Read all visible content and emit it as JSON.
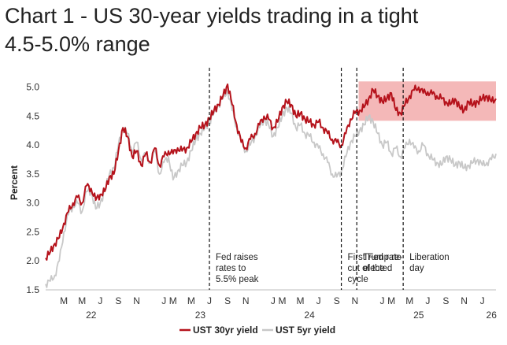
{
  "title_line1": "Chart 1 - US 30-year yields trading in a tight",
  "title_line2": "4.5-5.0% range",
  "chart_data": {
    "type": "line",
    "title": "Chart 1 - US 30-year yields trading in a tight 4.5-5.0% range",
    "ylabel": "Percent",
    "ylim": [
      1.5,
      5.2
    ],
    "yticks": [
      1.5,
      2.0,
      2.5,
      3.0,
      3.5,
      4.0,
      4.5,
      5.0
    ],
    "ytick_labels": [
      "1.5",
      "2.0",
      "2.5",
      "3.0",
      "3.5",
      "4.0",
      "4.5",
      "5.0"
    ],
    "x_range_months": [
      0,
      49.5
    ],
    "x_origin": "2022-01",
    "month_ticks": [
      {
        "m": 2,
        "label": "M"
      },
      {
        "m": 4,
        "label": "M"
      },
      {
        "m": 6,
        "label": "J"
      },
      {
        "m": 8,
        "label": "S"
      },
      {
        "m": 10,
        "label": "N"
      },
      {
        "m": 13,
        "label": "J"
      },
      {
        "m": 14,
        "label": "M"
      },
      {
        "m": 16,
        "label": "M"
      },
      {
        "m": 18,
        "label": "J"
      },
      {
        "m": 20,
        "label": "S"
      },
      {
        "m": 22,
        "label": "N"
      },
      {
        "m": 25,
        "label": "J"
      },
      {
        "m": 26,
        "label": "M"
      },
      {
        "m": 28,
        "label": "M"
      },
      {
        "m": 30,
        "label": "J"
      },
      {
        "m": 32,
        "label": "S"
      },
      {
        "m": 34,
        "label": "N"
      },
      {
        "m": 37,
        "label": "J"
      },
      {
        "m": 38,
        "label": "M"
      },
      {
        "m": 40,
        "label": "M"
      },
      {
        "m": 42,
        "label": "J"
      },
      {
        "m": 44,
        "label": "S"
      },
      {
        "m": 46,
        "label": "N"
      },
      {
        "m": 48,
        "label": "J"
      }
    ],
    "year_labels": [
      {
        "m": 5,
        "label": "22"
      },
      {
        "m": 17,
        "label": "23"
      },
      {
        "m": 29,
        "label": "24"
      },
      {
        "m": 41,
        "label": "25"
      },
      {
        "m": 49,
        "label": "26"
      }
    ],
    "events": [
      {
        "m": 18,
        "label_lines": [
          "Fed raises",
          "rates to",
          "5.5% peak"
        ]
      },
      {
        "m": 32.5,
        "label_lines": [
          "First Fed rate",
          "cut of the",
          "cycle"
        ]
      },
      {
        "m": 34.2,
        "label_lines": [
          "Trump re-",
          "elected"
        ]
      },
      {
        "m": 39.3,
        "label_lines": [
          "Liberation",
          "day"
        ]
      }
    ],
    "shaded_band": {
      "y_range": [
        4.42,
        5.1
      ],
      "x_range_months": [
        34.4,
        49.5
      ],
      "color": "#f0a0a0"
    },
    "series": [
      {
        "name": "UST 30yr yield",
        "color": "#b5121b",
        "x": [
          0,
          0.5,
          1,
          1.5,
          2,
          2.5,
          3,
          3.5,
          4,
          4.5,
          5,
          5.5,
          6,
          6.5,
          7,
          7.5,
          8,
          8.5,
          9,
          9.5,
          10,
          10.5,
          11,
          11.5,
          12,
          12.5,
          13,
          13.5,
          14,
          14.5,
          15,
          15.5,
          16,
          16.5,
          17,
          17.5,
          18,
          18.5,
          19,
          19.5,
          20,
          20.5,
          21,
          21.5,
          22,
          22.5,
          23,
          23.5,
          24,
          24.5,
          25,
          25.5,
          26,
          26.5,
          27,
          27.5,
          28,
          28.5,
          29,
          29.5,
          30,
          30.5,
          31,
          31.5,
          32,
          32.5,
          33,
          33.5,
          34,
          34.5,
          35,
          35.5,
          36,
          36.5,
          37,
          37.5,
          38,
          38.5,
          39,
          39.5,
          40,
          40.5,
          41,
          41.5,
          42,
          42.5,
          43,
          43.5,
          44,
          44.5,
          45,
          45.5,
          46,
          46.5,
          47,
          47.5,
          48,
          48.5,
          49,
          49.5
        ],
        "values": [
          2.05,
          2.15,
          2.3,
          2.4,
          2.65,
          2.85,
          3.0,
          3.1,
          3.0,
          3.3,
          3.25,
          3.05,
          3.15,
          3.2,
          3.45,
          3.5,
          3.9,
          4.3,
          4.15,
          3.8,
          3.9,
          3.65,
          3.85,
          3.7,
          3.95,
          3.65,
          3.8,
          3.9,
          3.85,
          3.95,
          3.9,
          3.95,
          4.05,
          4.2,
          4.3,
          4.35,
          4.45,
          4.6,
          4.7,
          4.85,
          5.05,
          4.7,
          4.35,
          4.05,
          3.95,
          4.1,
          4.2,
          4.35,
          4.5,
          4.45,
          4.3,
          4.4,
          4.65,
          4.75,
          4.7,
          4.5,
          4.55,
          4.45,
          4.4,
          4.35,
          4.4,
          4.3,
          4.2,
          4.1,
          4.05,
          4.0,
          4.2,
          4.45,
          4.55,
          4.6,
          4.65,
          4.8,
          4.95,
          4.85,
          4.75,
          4.8,
          4.9,
          4.6,
          4.55,
          4.7,
          4.85,
          4.95,
          5.0,
          4.9,
          4.92,
          4.88,
          4.85,
          4.8,
          4.75,
          4.7,
          4.8,
          4.65,
          4.6,
          4.75,
          4.7,
          4.75,
          4.8,
          4.85,
          4.75,
          4.8
        ]
      },
      {
        "name": "UST 5yr yield",
        "color": "#c8c8c8",
        "x": [
          0,
          0.5,
          1,
          1.5,
          2,
          2.5,
          3,
          3.5,
          4,
          4.5,
          5,
          5.5,
          6,
          6.5,
          7,
          7.5,
          8,
          8.5,
          9,
          9.5,
          10,
          10.5,
          11,
          11.5,
          12,
          12.5,
          13,
          13.5,
          14,
          14.5,
          15,
          15.5,
          16,
          16.5,
          17,
          17.5,
          18,
          18.5,
          19,
          19.5,
          20,
          20.5,
          21,
          21.5,
          22,
          22.5,
          23,
          23.5,
          24,
          24.5,
          25,
          25.5,
          26,
          26.5,
          27,
          27.5,
          28,
          28.5,
          29,
          29.5,
          30,
          30.5,
          31,
          31.5,
          32,
          32.5,
          33,
          33.5,
          34,
          34.5,
          35,
          35.5,
          36,
          36.5,
          37,
          37.5,
          38,
          38.5,
          39,
          39.5,
          40,
          40.5,
          41,
          41.5,
          42,
          42.5,
          43,
          43.5,
          44,
          44.5,
          45,
          45.5,
          46,
          46.5,
          47,
          47.5,
          48,
          48.5,
          49,
          49.5
        ],
        "values": [
          1.6,
          1.65,
          1.75,
          2.0,
          2.5,
          2.8,
          2.95,
          3.0,
          2.85,
          3.2,
          3.2,
          2.9,
          3.0,
          3.2,
          3.5,
          3.6,
          4.0,
          4.3,
          4.2,
          3.9,
          4.05,
          3.75,
          3.85,
          3.7,
          3.9,
          3.5,
          3.7,
          3.8,
          3.4,
          3.55,
          3.65,
          3.7,
          3.9,
          4.1,
          4.2,
          4.3,
          4.4,
          4.55,
          4.7,
          4.8,
          4.95,
          4.6,
          4.3,
          4.05,
          3.9,
          4.0,
          4.15,
          4.3,
          4.45,
          4.35,
          4.15,
          4.3,
          4.5,
          4.65,
          4.55,
          4.3,
          4.35,
          4.2,
          4.15,
          4.05,
          3.95,
          3.85,
          3.7,
          3.5,
          3.45,
          3.55,
          3.8,
          4.05,
          4.15,
          4.25,
          4.35,
          4.5,
          4.4,
          4.2,
          4.0,
          4.05,
          3.85,
          3.95,
          3.8,
          3.95,
          4.1,
          3.95,
          3.9,
          4.0,
          3.85,
          3.75,
          3.7,
          3.65,
          3.8,
          3.75,
          3.65,
          3.7,
          3.6,
          3.65,
          3.7,
          3.75,
          3.65,
          3.7,
          3.75,
          3.85
        ]
      }
    ],
    "legend_position": "bottom"
  }
}
